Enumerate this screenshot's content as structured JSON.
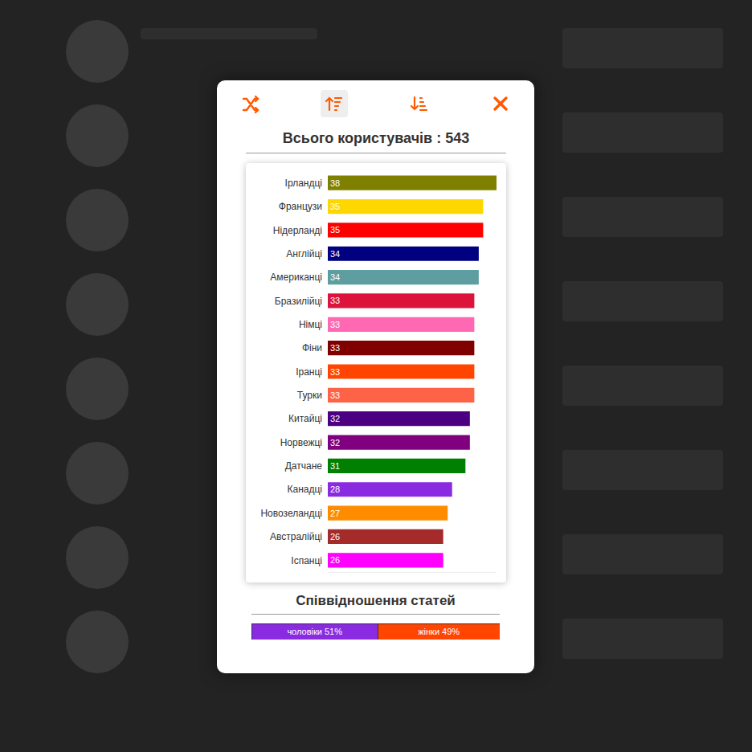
{
  "chart_data": [
    {
      "type": "bar",
      "title": "Всього користувачів : 543",
      "orientation": "horizontal",
      "categories": [
        "Ірландці",
        "Французи",
        "Нідерланді",
        "Англійці",
        "Американці",
        "Бразилійці",
        "Німці",
        "Фіни",
        "Іранці",
        "Турки",
        "Китайці",
        "Норвежці",
        "Датчане",
        "Канадці",
        "Новозеландці",
        "Австралійці",
        "Іспанці"
      ],
      "values": [
        38,
        35,
        35,
        34,
        34,
        33,
        33,
        33,
        33,
        33,
        32,
        32,
        31,
        28,
        27,
        26,
        26
      ],
      "colors": [
        "#808000",
        "#ffd700",
        "#ff0000",
        "#000080",
        "#5f9ea0",
        "#dc143c",
        "#ff69b4",
        "#800000",
        "#ff4500",
        "#ff6347",
        "#4b0082",
        "#800080",
        "#008000",
        "#8a2be2",
        "#ff8c00",
        "#a52a2a",
        "#ff00ff"
      ],
      "xlim": [
        0,
        38
      ],
      "grid": false,
      "data_labels": true,
      "tick_labels": "y"
    },
    {
      "type": "bar",
      "title": "Співвідношення статей",
      "orientation": "horizontal",
      "stacked": true,
      "categories": [
        null
      ],
      "series": [
        {
          "name": "чоловіки",
          "color": "#8a2be2",
          "values": [
            51
          ],
          "value_labels": [
            "чоловіки 51%"
          ]
        },
        {
          "name": "жінки",
          "color": "#ff4500",
          "values": [
            49
          ],
          "value_labels": [
            "жінки 49%"
          ]
        }
      ],
      "xlim": [
        0,
        100
      ],
      "grid": false,
      "data_labels": true,
      "tick_labels": false
    }
  ]
}
